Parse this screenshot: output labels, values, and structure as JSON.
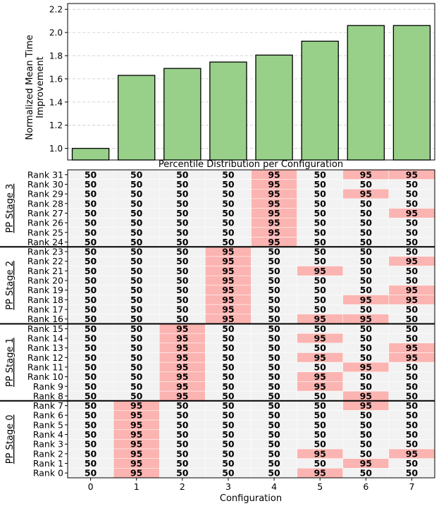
{
  "chart_data": [
    {
      "type": "bar",
      "ylabel": "Normalized Mean Time Improvement",
      "ylabel_lines": [
        "Normalized Mean Time",
        "Improvement"
      ],
      "categories": [
        "0",
        "1",
        "2",
        "3",
        "4",
        "5",
        "6",
        "7"
      ],
      "values": [
        1.0,
        1.63,
        1.69,
        1.745,
        1.805,
        1.925,
        2.06,
        2.06
      ],
      "ylim": [
        0.9,
        2.25
      ],
      "yticks": [
        1.0,
        1.2,
        1.4,
        1.6,
        1.8,
        2.0,
        2.2
      ],
      "ytick_labels": [
        "1.0",
        "1.2",
        "1.4",
        "1.6",
        "1.8",
        "2.0",
        "2.2"
      ],
      "grid": "y-dashed",
      "bar_color": "#98d08a"
    },
    {
      "type": "heatmap",
      "title": "Percentile Distribution per Configuration",
      "xlabel": "Configuration",
      "columns": [
        "0",
        "1",
        "2",
        "3",
        "4",
        "5",
        "6",
        "7"
      ],
      "rows": [
        "Rank 31",
        "Rank 30",
        "Rank 29",
        "Rank 28",
        "Rank 27",
        "Rank 26",
        "Rank 25",
        "Rank 24",
        "Rank 23",
        "Rank 22",
        "Rank 21",
        "Rank 20",
        "Rank 19",
        "Rank 18",
        "Rank 17",
        "Rank 16",
        "Rank 15",
        "Rank 14",
        "Rank 13",
        "Rank 12",
        "Rank 11",
        "Rank 10",
        "Rank 9",
        "Rank 8",
        "Rank 7",
        "Rank 6",
        "Rank 5",
        "Rank 4",
        "Rank 3",
        "Rank 2",
        "Rank 1",
        "Rank 0"
      ],
      "groups": [
        {
          "label": "PP Stage 3",
          "rows": 8
        },
        {
          "label": "PP Stage 2",
          "rows": 8
        },
        {
          "label": "PP Stage 1",
          "rows": 8
        },
        {
          "label": "PP Stage 0",
          "rows": 8
        }
      ],
      "values": [
        [
          50,
          50,
          50,
          50,
          95,
          50,
          95,
          95
        ],
        [
          50,
          50,
          50,
          50,
          95,
          50,
          50,
          50
        ],
        [
          50,
          50,
          50,
          50,
          95,
          50,
          95,
          50
        ],
        [
          50,
          50,
          50,
          50,
          95,
          50,
          50,
          50
        ],
        [
          50,
          50,
          50,
          50,
          95,
          50,
          50,
          95
        ],
        [
          50,
          50,
          50,
          50,
          95,
          50,
          50,
          50
        ],
        [
          50,
          50,
          50,
          50,
          95,
          50,
          50,
          50
        ],
        [
          50,
          50,
          50,
          50,
          95,
          50,
          50,
          50
        ],
        [
          50,
          50,
          50,
          95,
          50,
          50,
          50,
          50
        ],
        [
          50,
          50,
          50,
          95,
          50,
          50,
          50,
          95
        ],
        [
          50,
          50,
          50,
          95,
          50,
          95,
          50,
          50
        ],
        [
          50,
          50,
          50,
          95,
          50,
          50,
          50,
          50
        ],
        [
          50,
          50,
          50,
          95,
          50,
          50,
          50,
          95
        ],
        [
          50,
          50,
          50,
          95,
          50,
          50,
          95,
          95
        ],
        [
          50,
          50,
          50,
          95,
          50,
          50,
          50,
          50
        ],
        [
          50,
          50,
          50,
          95,
          50,
          95,
          95,
          50
        ],
        [
          50,
          50,
          95,
          50,
          50,
          50,
          50,
          50
        ],
        [
          50,
          50,
          95,
          50,
          50,
          95,
          50,
          50
        ],
        [
          50,
          50,
          95,
          50,
          50,
          50,
          50,
          95
        ],
        [
          50,
          50,
          95,
          50,
          50,
          95,
          50,
          95
        ],
        [
          50,
          50,
          95,
          50,
          50,
          50,
          95,
          50
        ],
        [
          50,
          50,
          95,
          50,
          50,
          95,
          50,
          50
        ],
        [
          50,
          50,
          95,
          50,
          50,
          95,
          50,
          50
        ],
        [
          50,
          50,
          95,
          50,
          50,
          50,
          95,
          50
        ],
        [
          50,
          95,
          50,
          50,
          50,
          50,
          95,
          50
        ],
        [
          50,
          95,
          50,
          50,
          50,
          50,
          50,
          50
        ],
        [
          50,
          95,
          50,
          50,
          50,
          50,
          50,
          50
        ],
        [
          50,
          95,
          50,
          50,
          50,
          50,
          50,
          50
        ],
        [
          50,
          95,
          50,
          50,
          50,
          50,
          50,
          50
        ],
        [
          50,
          95,
          50,
          50,
          50,
          95,
          50,
          95
        ],
        [
          50,
          95,
          50,
          50,
          50,
          50,
          95,
          50
        ],
        [
          50,
          95,
          50,
          50,
          50,
          95,
          50,
          50
        ]
      ],
      "colors": {
        "50": "#f2f2f2",
        "95": "#fbb4b1"
      }
    }
  ]
}
